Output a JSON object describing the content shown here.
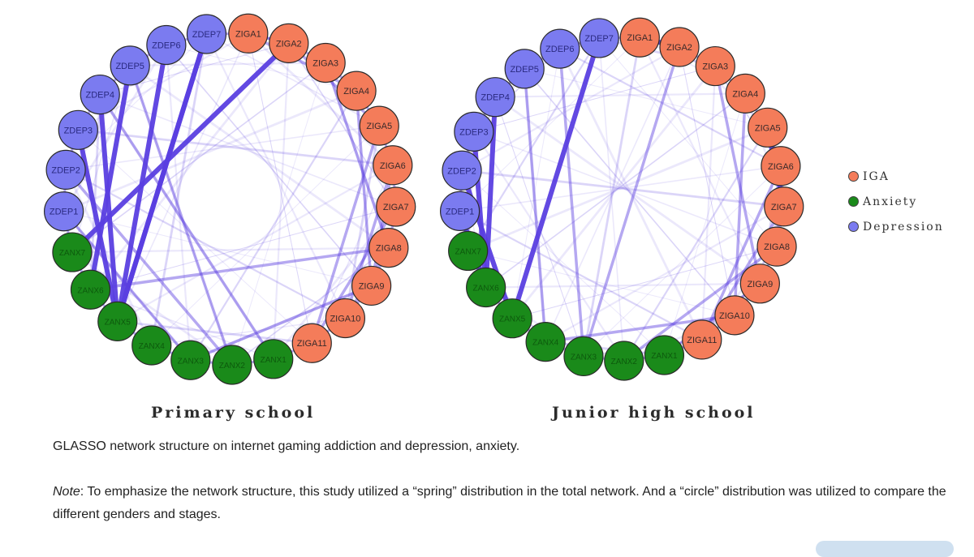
{
  "networks": [
    {
      "title": "Primary school",
      "nodes": [
        "ZDEP7",
        "ZIGA1",
        "ZIGA2",
        "ZIGA3",
        "ZIGA4",
        "ZIGA5",
        "ZIGA6",
        "ZIGA7",
        "ZIGA8",
        "ZIGA9",
        "ZIGA10",
        "ZIGA11",
        "ZANX1",
        "ZANX2",
        "ZANX3",
        "ZANX4",
        "ZANX5",
        "ZANX6",
        "ZANX7",
        "ZDEP1",
        "ZDEP2",
        "ZDEP3",
        "ZDEP4",
        "ZDEP5",
        "ZDEP6"
      ]
    },
    {
      "title": "Junior high school",
      "nodes": [
        "ZDEP7",
        "ZIGA1",
        "ZIGA2",
        "ZIGA3",
        "ZIGA4",
        "ZIGA5",
        "ZIGA6",
        "ZIGA7",
        "ZIGA8",
        "ZIGA9",
        "ZIGA10",
        "ZIGA11",
        "ZANX1",
        "ZANX2",
        "ZANX3",
        "ZANX4",
        "ZANX5",
        "ZANX6",
        "ZANX7",
        "ZDEP1",
        "ZDEP2",
        "ZDEP3",
        "ZDEP4",
        "ZDEP5",
        "ZDEP6"
      ]
    }
  ],
  "legend": [
    {
      "label": "IGA",
      "color": "#f47c5a"
    },
    {
      "label": "Anxiety",
      "color": "#1a8a1a"
    },
    {
      "label": "Depression",
      "color": "#7b7bf0"
    }
  ],
  "caption": "GLASSO network structure on internet gaming addiction and depression, anxiety.",
  "note": {
    "label": "Note",
    "text": ": To emphasize the network structure, this study utilized a “spring” distribution in the total network. And a “circle” distribution was utilized to compare the different genders and stages."
  },
  "colors": {
    "iga": "#f47c5a",
    "anxiety": "#1a8a1a",
    "depression": "#7b7bf0",
    "edge": "#5a3fe0"
  }
}
